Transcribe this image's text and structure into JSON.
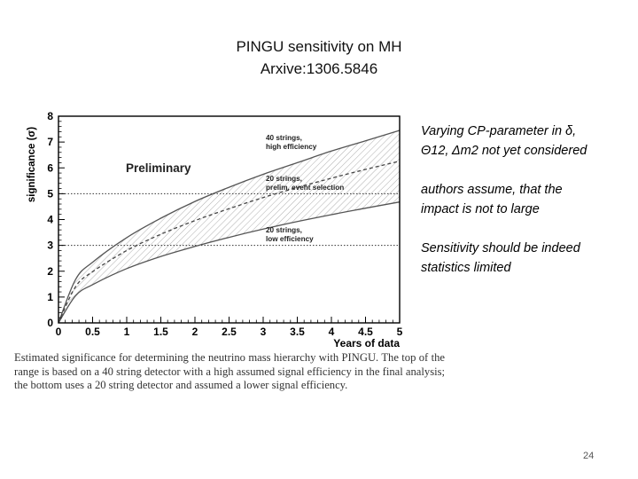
{
  "slide": {
    "title_line1": "PINGU sensitivity on MH",
    "title_line2": "Arxive:1306.5846",
    "caption": "Estimated significance for determining the neutrino mass hierarchy with PINGU. The top of the range is based on a 40 string detector with a high assumed signal efficiency in the final analysis; the bottom uses a 20 string detector and assumed a lower signal efficiency.",
    "notes": [
      "Varying CP-parameter in δ, Θ12, Δm2 not yet considered",
      "authors assume, that the impact is not to large",
      "Sensitivity should be indeed statistics limited"
    ],
    "page_number": "24"
  },
  "chart_data": {
    "type": "line",
    "title": "",
    "xlabel": "Years of data",
    "ylabel": "significance (σ)",
    "xlim": [
      0,
      5
    ],
    "ylim": [
      0,
      8
    ],
    "x_ticks": [
      "0",
      "0.5",
      "1",
      "1.5",
      "2",
      "2.5",
      "3",
      "3.5",
      "4",
      "4.5",
      "5"
    ],
    "y_ticks": [
      "0",
      "1",
      "2",
      "3",
      "4",
      "5",
      "6",
      "7",
      "8"
    ],
    "grid": false,
    "reference_lines_y": [
      3,
      5
    ],
    "annotation": "Preliminary",
    "band": "shaded region between the 40 strings and 20 strings, low efficiency curves",
    "series": [
      {
        "name": "40 strings, high efficiency",
        "style": "solid",
        "x": [
          0,
          0.25,
          0.5,
          1,
          1.5,
          2,
          2.5,
          3,
          3.5,
          4,
          4.5,
          5
        ],
        "y": [
          0,
          1.68,
          2.35,
          3.3,
          4.05,
          4.7,
          5.25,
          5.75,
          6.2,
          6.65,
          7.05,
          7.45
        ]
      },
      {
        "name": "20 strings, prelim. event selection",
        "style": "dashed",
        "x": [
          0,
          0.25,
          0.5,
          1,
          1.5,
          2,
          2.5,
          3,
          3.5,
          4,
          4.5,
          5
        ],
        "y": [
          0,
          1.4,
          1.98,
          2.8,
          3.43,
          3.96,
          4.42,
          4.85,
          5.24,
          5.6,
          5.94,
          6.26
        ]
      },
      {
        "name": "20 strings, low efficiency",
        "style": "solid",
        "x": [
          0,
          0.25,
          0.5,
          1,
          1.5,
          2,
          2.5,
          3,
          3.5,
          4,
          4.5,
          5
        ],
        "y": [
          0,
          1.05,
          1.48,
          2.1,
          2.57,
          2.96,
          3.31,
          3.63,
          3.92,
          4.19,
          4.44,
          4.68
        ]
      }
    ]
  }
}
